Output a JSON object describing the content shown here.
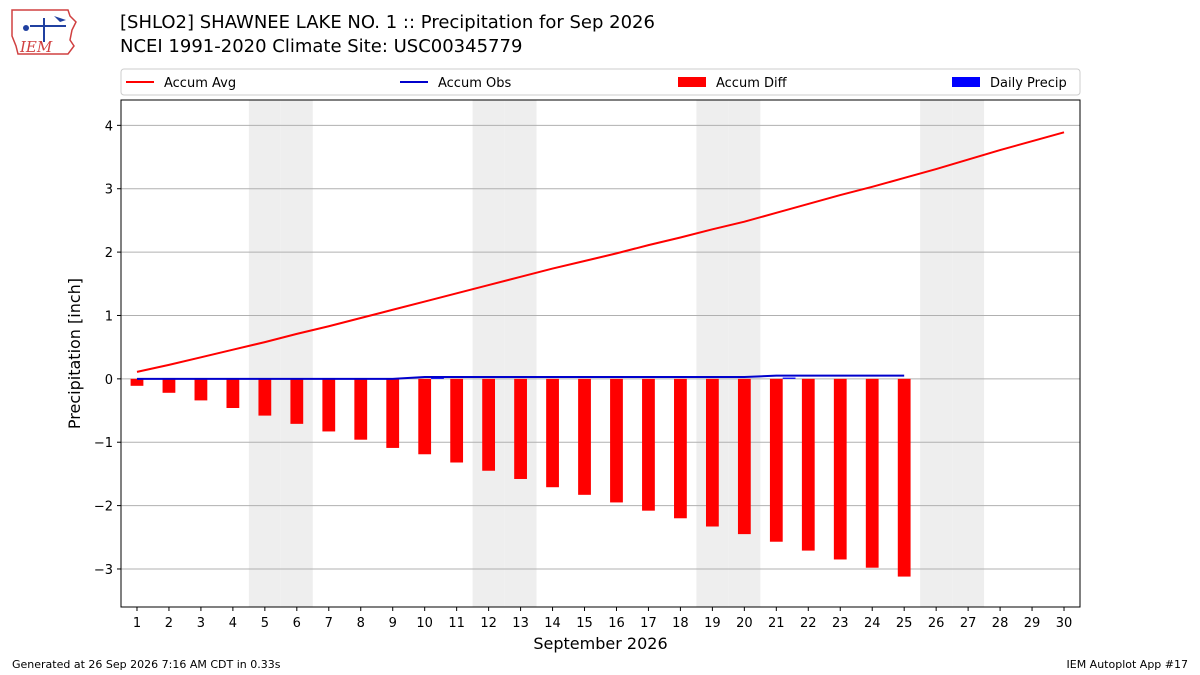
{
  "header": {
    "title_line1": "[SHLO2] SHAWNEE LAKE NO. 1 :: Precipitation for Sep 2026",
    "title_line2": "NCEI 1991-2020 Climate Site: USC00345779",
    "logo_text": "IEM"
  },
  "footer": {
    "generated": "Generated at 26 Sep 2026 7:16 AM CDT in 0.33s",
    "app": "IEM Autoplot App #17"
  },
  "colors": {
    "avg": "#ff0000",
    "obs": "#0000cc",
    "diff": "#ff0000",
    "daily": "#0000ff",
    "weekend": "#eeeeee",
    "grid": "#b0b0b0"
  },
  "chart_data": {
    "type": "bar",
    "xlabel": "September 2026",
    "ylabel": "Precipitation [inch]",
    "ylim": [
      -3.6,
      4.4
    ],
    "yticks": [
      4,
      3,
      2,
      1,
      0,
      -1,
      -2,
      -3
    ],
    "ytick_labels": [
      "4",
      "3",
      "2",
      "1",
      "0",
      "−1",
      "−2",
      "−3"
    ],
    "x": [
      1,
      2,
      3,
      4,
      5,
      6,
      7,
      8,
      9,
      10,
      11,
      12,
      13,
      14,
      15,
      16,
      17,
      18,
      19,
      20,
      21,
      22,
      23,
      24,
      25,
      26,
      27,
      28,
      29,
      30
    ],
    "weekend_days": [
      5,
      6,
      12,
      13,
      19,
      20,
      26,
      27
    ],
    "grid": true,
    "legend_placement": "top, above plot",
    "legend": [
      "Accum Avg",
      "Accum Obs",
      "Accum Diff",
      "Daily Precip"
    ],
    "series": [
      {
        "name": "Accum Avg",
        "type": "line",
        "x": [
          1,
          2,
          3,
          4,
          5,
          6,
          7,
          8,
          9,
          10,
          11,
          12,
          13,
          14,
          15,
          16,
          17,
          18,
          19,
          20,
          21,
          22,
          23,
          24,
          25,
          26,
          27,
          28,
          29,
          30
        ],
        "values": [
          0.11,
          0.22,
          0.34,
          0.46,
          0.58,
          0.71,
          0.83,
          0.96,
          1.09,
          1.22,
          1.35,
          1.48,
          1.61,
          1.74,
          1.86,
          1.98,
          2.11,
          2.23,
          2.36,
          2.48,
          2.62,
          2.76,
          2.9,
          3.03,
          3.17,
          3.31,
          3.46,
          3.61,
          3.75,
          3.89
        ]
      },
      {
        "name": "Accum Obs",
        "type": "line",
        "x": [
          1,
          2,
          3,
          4,
          5,
          6,
          7,
          8,
          9,
          10,
          11,
          12,
          13,
          14,
          15,
          16,
          17,
          18,
          19,
          20,
          21,
          22,
          23,
          24,
          25
        ],
        "values": [
          0,
          0,
          0,
          0,
          0,
          0,
          0,
          0,
          0,
          0.03,
          0.03,
          0.03,
          0.03,
          0.03,
          0.03,
          0.03,
          0.03,
          0.03,
          0.03,
          0.03,
          0.05,
          0.05,
          0.05,
          0.05,
          0.05
        ]
      },
      {
        "name": "Accum Diff",
        "type": "bar",
        "x": [
          1,
          2,
          3,
          4,
          5,
          6,
          7,
          8,
          9,
          10,
          11,
          12,
          13,
          14,
          15,
          16,
          17,
          18,
          19,
          20,
          21,
          22,
          23,
          24,
          25
        ],
        "values": [
          -0.11,
          -0.22,
          -0.34,
          -0.46,
          -0.58,
          -0.71,
          -0.83,
          -0.96,
          -1.09,
          -1.19,
          -1.32,
          -1.45,
          -1.58,
          -1.71,
          -1.83,
          -1.95,
          -2.08,
          -2.2,
          -2.33,
          -2.45,
          -2.57,
          -2.71,
          -2.85,
          -2.98,
          -3.12
        ]
      },
      {
        "name": "Daily Precip",
        "type": "bar",
        "x": [
          10,
          21
        ],
        "values": [
          0.03,
          0.02
        ]
      }
    ]
  }
}
